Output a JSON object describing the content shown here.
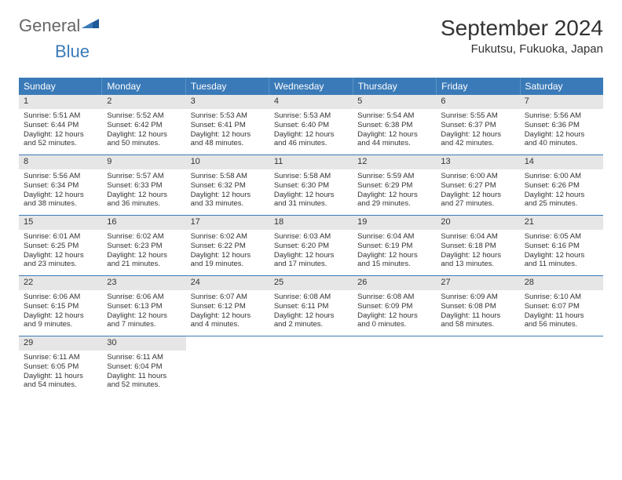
{
  "logo": {
    "part1": "General",
    "part2": "Blue"
  },
  "title": "September 2024",
  "location": "Fukutsu, Fukuoka, Japan",
  "colors": {
    "header_bg": "#3a7ab8",
    "daynum_bg": "#e6e6e6",
    "row_border": "#3a7ab8"
  },
  "weekdays": [
    "Sunday",
    "Monday",
    "Tuesday",
    "Wednesday",
    "Thursday",
    "Friday",
    "Saturday"
  ],
  "weeks": [
    [
      {
        "n": "1",
        "sr": "Sunrise: 5:51 AM",
        "ss": "Sunset: 6:44 PM",
        "d1": "Daylight: 12 hours",
        "d2": "and 52 minutes."
      },
      {
        "n": "2",
        "sr": "Sunrise: 5:52 AM",
        "ss": "Sunset: 6:42 PM",
        "d1": "Daylight: 12 hours",
        "d2": "and 50 minutes."
      },
      {
        "n": "3",
        "sr": "Sunrise: 5:53 AM",
        "ss": "Sunset: 6:41 PM",
        "d1": "Daylight: 12 hours",
        "d2": "and 48 minutes."
      },
      {
        "n": "4",
        "sr": "Sunrise: 5:53 AM",
        "ss": "Sunset: 6:40 PM",
        "d1": "Daylight: 12 hours",
        "d2": "and 46 minutes."
      },
      {
        "n": "5",
        "sr": "Sunrise: 5:54 AM",
        "ss": "Sunset: 6:38 PM",
        "d1": "Daylight: 12 hours",
        "d2": "and 44 minutes."
      },
      {
        "n": "6",
        "sr": "Sunrise: 5:55 AM",
        "ss": "Sunset: 6:37 PM",
        "d1": "Daylight: 12 hours",
        "d2": "and 42 minutes."
      },
      {
        "n": "7",
        "sr": "Sunrise: 5:56 AM",
        "ss": "Sunset: 6:36 PM",
        "d1": "Daylight: 12 hours",
        "d2": "and 40 minutes."
      }
    ],
    [
      {
        "n": "8",
        "sr": "Sunrise: 5:56 AM",
        "ss": "Sunset: 6:34 PM",
        "d1": "Daylight: 12 hours",
        "d2": "and 38 minutes."
      },
      {
        "n": "9",
        "sr": "Sunrise: 5:57 AM",
        "ss": "Sunset: 6:33 PM",
        "d1": "Daylight: 12 hours",
        "d2": "and 36 minutes."
      },
      {
        "n": "10",
        "sr": "Sunrise: 5:58 AM",
        "ss": "Sunset: 6:32 PM",
        "d1": "Daylight: 12 hours",
        "d2": "and 33 minutes."
      },
      {
        "n": "11",
        "sr": "Sunrise: 5:58 AM",
        "ss": "Sunset: 6:30 PM",
        "d1": "Daylight: 12 hours",
        "d2": "and 31 minutes."
      },
      {
        "n": "12",
        "sr": "Sunrise: 5:59 AM",
        "ss": "Sunset: 6:29 PM",
        "d1": "Daylight: 12 hours",
        "d2": "and 29 minutes."
      },
      {
        "n": "13",
        "sr": "Sunrise: 6:00 AM",
        "ss": "Sunset: 6:27 PM",
        "d1": "Daylight: 12 hours",
        "d2": "and 27 minutes."
      },
      {
        "n": "14",
        "sr": "Sunrise: 6:00 AM",
        "ss": "Sunset: 6:26 PM",
        "d1": "Daylight: 12 hours",
        "d2": "and 25 minutes."
      }
    ],
    [
      {
        "n": "15",
        "sr": "Sunrise: 6:01 AM",
        "ss": "Sunset: 6:25 PM",
        "d1": "Daylight: 12 hours",
        "d2": "and 23 minutes."
      },
      {
        "n": "16",
        "sr": "Sunrise: 6:02 AM",
        "ss": "Sunset: 6:23 PM",
        "d1": "Daylight: 12 hours",
        "d2": "and 21 minutes."
      },
      {
        "n": "17",
        "sr": "Sunrise: 6:02 AM",
        "ss": "Sunset: 6:22 PM",
        "d1": "Daylight: 12 hours",
        "d2": "and 19 minutes."
      },
      {
        "n": "18",
        "sr": "Sunrise: 6:03 AM",
        "ss": "Sunset: 6:20 PM",
        "d1": "Daylight: 12 hours",
        "d2": "and 17 minutes."
      },
      {
        "n": "19",
        "sr": "Sunrise: 6:04 AM",
        "ss": "Sunset: 6:19 PM",
        "d1": "Daylight: 12 hours",
        "d2": "and 15 minutes."
      },
      {
        "n": "20",
        "sr": "Sunrise: 6:04 AM",
        "ss": "Sunset: 6:18 PM",
        "d1": "Daylight: 12 hours",
        "d2": "and 13 minutes."
      },
      {
        "n": "21",
        "sr": "Sunrise: 6:05 AM",
        "ss": "Sunset: 6:16 PM",
        "d1": "Daylight: 12 hours",
        "d2": "and 11 minutes."
      }
    ],
    [
      {
        "n": "22",
        "sr": "Sunrise: 6:06 AM",
        "ss": "Sunset: 6:15 PM",
        "d1": "Daylight: 12 hours",
        "d2": "and 9 minutes."
      },
      {
        "n": "23",
        "sr": "Sunrise: 6:06 AM",
        "ss": "Sunset: 6:13 PM",
        "d1": "Daylight: 12 hours",
        "d2": "and 7 minutes."
      },
      {
        "n": "24",
        "sr": "Sunrise: 6:07 AM",
        "ss": "Sunset: 6:12 PM",
        "d1": "Daylight: 12 hours",
        "d2": "and 4 minutes."
      },
      {
        "n": "25",
        "sr": "Sunrise: 6:08 AM",
        "ss": "Sunset: 6:11 PM",
        "d1": "Daylight: 12 hours",
        "d2": "and 2 minutes."
      },
      {
        "n": "26",
        "sr": "Sunrise: 6:08 AM",
        "ss": "Sunset: 6:09 PM",
        "d1": "Daylight: 12 hours",
        "d2": "and 0 minutes."
      },
      {
        "n": "27",
        "sr": "Sunrise: 6:09 AM",
        "ss": "Sunset: 6:08 PM",
        "d1": "Daylight: 11 hours",
        "d2": "and 58 minutes."
      },
      {
        "n": "28",
        "sr": "Sunrise: 6:10 AM",
        "ss": "Sunset: 6:07 PM",
        "d1": "Daylight: 11 hours",
        "d2": "and 56 minutes."
      }
    ],
    [
      {
        "n": "29",
        "sr": "Sunrise: 6:11 AM",
        "ss": "Sunset: 6:05 PM",
        "d1": "Daylight: 11 hours",
        "d2": "and 54 minutes."
      },
      {
        "n": "30",
        "sr": "Sunrise: 6:11 AM",
        "ss": "Sunset: 6:04 PM",
        "d1": "Daylight: 11 hours",
        "d2": "and 52 minutes."
      },
      null,
      null,
      null,
      null,
      null
    ]
  ]
}
